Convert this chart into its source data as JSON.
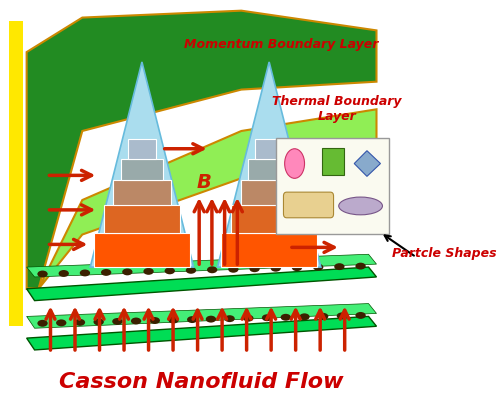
{
  "bg_color": "#ffffff",
  "yellow_bar_color": "#FFE800",
  "momentum_layer_color": "#228B22",
  "momentum_layer_outline": "#CC8800",
  "thermal_layer_color": "#90EE55",
  "thermal_layer_outline": "#CC8800",
  "plate_top_color": "#00DD55",
  "plate_top_edge": "#005500",
  "plate_bottom_color": "#00DD55",
  "plate_bottom_edge": "#005500",
  "dot_color": "#3B2000",
  "triangle_color": "#AADDEE",
  "triangle_edge": "#66BBDD",
  "block_colors": [
    "#FF5500",
    "#FF5500",
    "#CC7744",
    "#99AABB",
    "#88BBCC",
    "#AACCBB"
  ],
  "block_colors2": [
    "#FF5500",
    "#FF5500",
    "#CC7744",
    "#99AABB",
    "#88BBCC",
    "#AACCBB"
  ],
  "arrow_color": "#CC2200",
  "momentum_text": "Momentum Boundary Layer",
  "thermal_text": "Thermal Boundary\nLayer",
  "B_label": "B",
  "particle_shapes_label": "Partcle Shapes",
  "title": "Casson Nanofluid Flow",
  "title_color": "#CC0000"
}
